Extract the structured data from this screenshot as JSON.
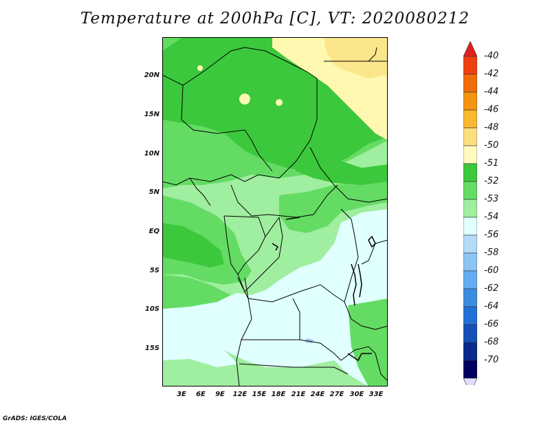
{
  "title": "Temperature at 200hPa [C], VT: 2020080212",
  "footer": "GrADS: IGES/COLA",
  "map": {
    "y_ticks": [
      "20N",
      "15N",
      "10N",
      "5N",
      "EQ",
      "5S",
      "10S",
      "15S"
    ],
    "x_ticks": [
      "3E",
      "6E",
      "9E",
      "12E",
      "15E",
      "18E",
      "21E",
      "24E",
      "27E",
      "30E",
      "33E"
    ]
  },
  "colorbar": {
    "labels": [
      "-40",
      "-42",
      "-44",
      "-46",
      "-48",
      "-50",
      "-51",
      "-52",
      "-53",
      "-54",
      "-56",
      "-58",
      "-60",
      "-62",
      "-64",
      "-66",
      "-68",
      "-70"
    ],
    "colors": [
      "#e02020",
      "#f04010",
      "#f06c0a",
      "#f49410",
      "#f8b830",
      "#fce080",
      "#fffac0",
      "#3cc83c",
      "#64dc64",
      "#a0eea0",
      "#e0ffff",
      "#b4dcf8",
      "#8cc4f4",
      "#64acf0",
      "#3c8ce0",
      "#2470d8",
      "#1450b8",
      "#0a2a8c",
      "#000060",
      "#dcdcff"
    ]
  },
  "palette": {
    "dark_green": "#3cc83c",
    "mid_green": "#64dc64",
    "light_green": "#a0eea0",
    "pale_cyan": "#e0ffff",
    "pale_yellow": "#fff8b0",
    "yellow": "#fce68c",
    "light_blue": "#a0c8f0"
  }
}
